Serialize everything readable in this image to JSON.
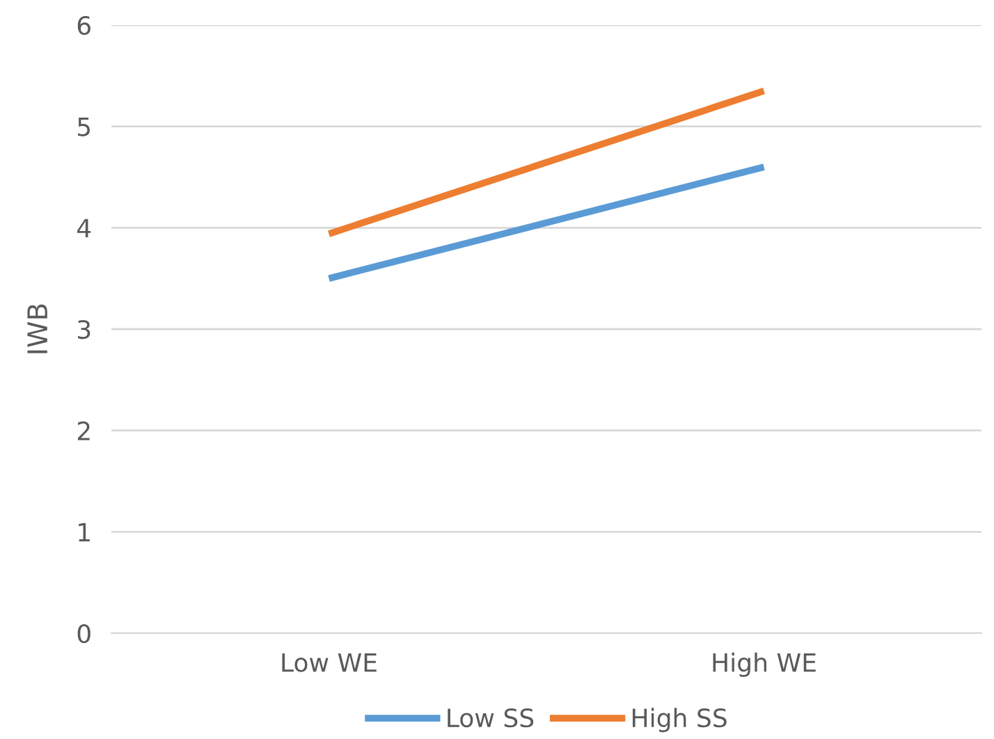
{
  "chart_data": {
    "type": "line",
    "ylabel": "IWB",
    "categories": [
      "Low WE",
      "High WE"
    ],
    "series": [
      {
        "name": "Low SS",
        "color": "#5b9bd5",
        "values": [
          3.5,
          4.6
        ]
      },
      {
        "name": "High SS",
        "color": "#ed7d31",
        "values": [
          3.94,
          5.35
        ]
      }
    ],
    "ylim": [
      0,
      6
    ],
    "yticks": [
      0,
      1,
      2,
      3,
      4,
      5,
      6
    ],
    "grid": "y",
    "legend": "bottom",
    "marker": "none",
    "line_style": "solid"
  }
}
